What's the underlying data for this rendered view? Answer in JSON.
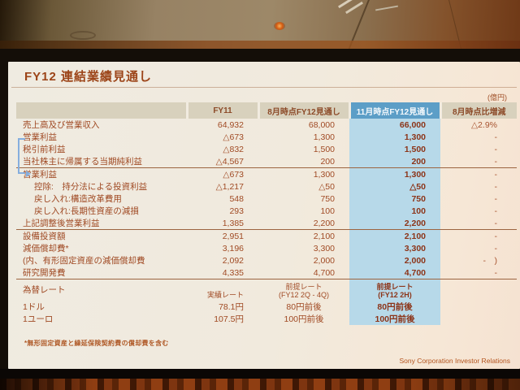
{
  "slide": {
    "title": "FY12 連結業績見通し",
    "unit_label": "(億円)",
    "columns": [
      "",
      "FY11",
      "8月時点FY12見通し",
      "11月時点FY12見通し",
      "8月時点比増減"
    ],
    "sections": [
      {
        "rows": [
          {
            "label": "売上高及び営業収入",
            "fy11": "64,932",
            "aug": "68,000",
            "nov": "66,000",
            "chg": "△2.9%"
          },
          {
            "label": "営業利益",
            "fy11": "△673",
            "aug": "1,300",
            "nov": "1,300",
            "chg": "-"
          },
          {
            "label": "税引前利益",
            "fy11": "△832",
            "aug": "1,500",
            "nov": "1,500",
            "chg": "-"
          },
          {
            "label": "当社株主に帰属する当期純利益",
            "fy11": "△4,567",
            "aug": "200",
            "nov": "200",
            "chg": "-"
          }
        ]
      },
      {
        "rows": [
          {
            "label": "営業利益",
            "fy11": "△673",
            "aug": "1,300",
            "nov": "1,300",
            "chg": "-"
          },
          {
            "label": "控除:　持分法による投資利益",
            "indent": true,
            "fy11": "△1,217",
            "aug": "△50",
            "nov": "△50",
            "chg": "-"
          },
          {
            "label": "戻し入れ:構造改革費用",
            "indent": true,
            "fy11": "548",
            "aug": "750",
            "nov": "750",
            "chg": "-"
          },
          {
            "label": "戻し入れ:長期性資産の減損",
            "indent": true,
            "fy11": "293",
            "aug": "100",
            "nov": "100",
            "chg": "-"
          },
          {
            "label": "上記調整後営業利益",
            "fy11": "1,385",
            "aug": "2,200",
            "nov": "2,200",
            "chg": "-"
          }
        ]
      },
      {
        "rows": [
          {
            "label": "設備投資額",
            "fy11": "2,951",
            "aug": "2,100",
            "nov": "2,100",
            "chg": "-"
          },
          {
            "label": "減価償却費*",
            "fy11": "3,196",
            "aug": "3,300",
            "nov": "3,300",
            "chg": "-"
          },
          {
            "label": "(内、有形固定資産の減価償却費",
            "fy11": "2,092",
            "aug": "2,000",
            "nov": "2,000",
            "chg": "-　)"
          },
          {
            "label": "研究開発費",
            "fy11": "4,335",
            "aug": "4,700",
            "nov": "4,700",
            "chg": "-"
          }
        ]
      },
      {
        "rows": [
          {
            "label": "為替レート",
            "header": true,
            "fy11": "実績レート",
            "aug": "前提レート\n(FY12 2Q - 4Q)",
            "nov": "前提レート\n(FY12 2H)",
            "chg": ""
          },
          {
            "label": "1ドル",
            "center": true,
            "fy11": "78.1円",
            "aug": "80円前後",
            "nov": "80円前後",
            "chg": ""
          },
          {
            "label": "1ユーロ",
            "center": true,
            "fy11": "107.5円",
            "aug": "100円前後",
            "nov": "100円前後",
            "chg": ""
          }
        ]
      }
    ],
    "footnote": "*無形固定資産と繰延保険契約費の償却費を含む",
    "footer": "Sony Corporation  Investor Relations"
  },
  "colors": {
    "highlight_column_bg": "#b7d9e9",
    "highlight_header_bg": "#5c9ec7",
    "header_bg": "#d8d1bd",
    "slide_text": "#a04a24",
    "bracket_blue": "#85aede"
  }
}
